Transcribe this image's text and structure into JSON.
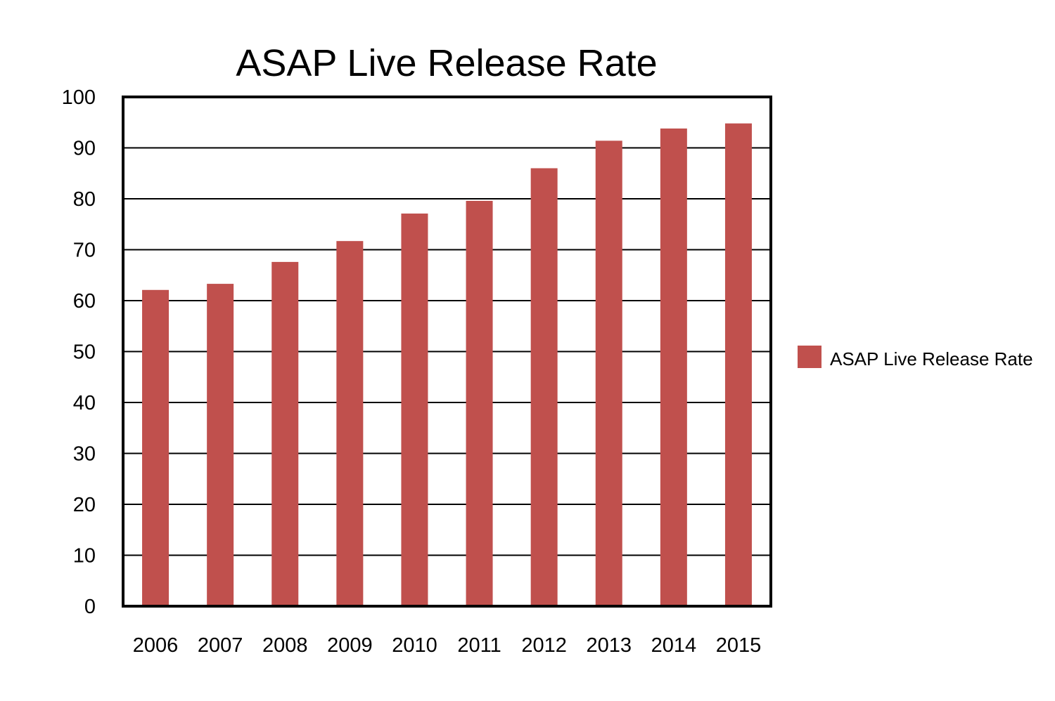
{
  "chart_data": {
    "type": "bar",
    "title": "ASAP Live Release Rate",
    "xlabel": "",
    "ylabel": "",
    "categories": [
      "2006",
      "2007",
      "2008",
      "2009",
      "2010",
      "2011",
      "2012",
      "2013",
      "2014",
      "2015"
    ],
    "series": [
      {
        "name": "ASAP Live Release Rate",
        "values": [
          62.1,
          63.3,
          67.6,
          71.7,
          77.1,
          79.6,
          86.0,
          91.4,
          93.8,
          94.8
        ],
        "color": "#c0504d"
      }
    ],
    "ylim": [
      0,
      100
    ],
    "yticks": [
      "0",
      "10",
      "20",
      "30",
      "40",
      "50",
      "60",
      "70",
      "80",
      "90",
      "100"
    ],
    "grid": true,
    "legend_position": "right"
  }
}
